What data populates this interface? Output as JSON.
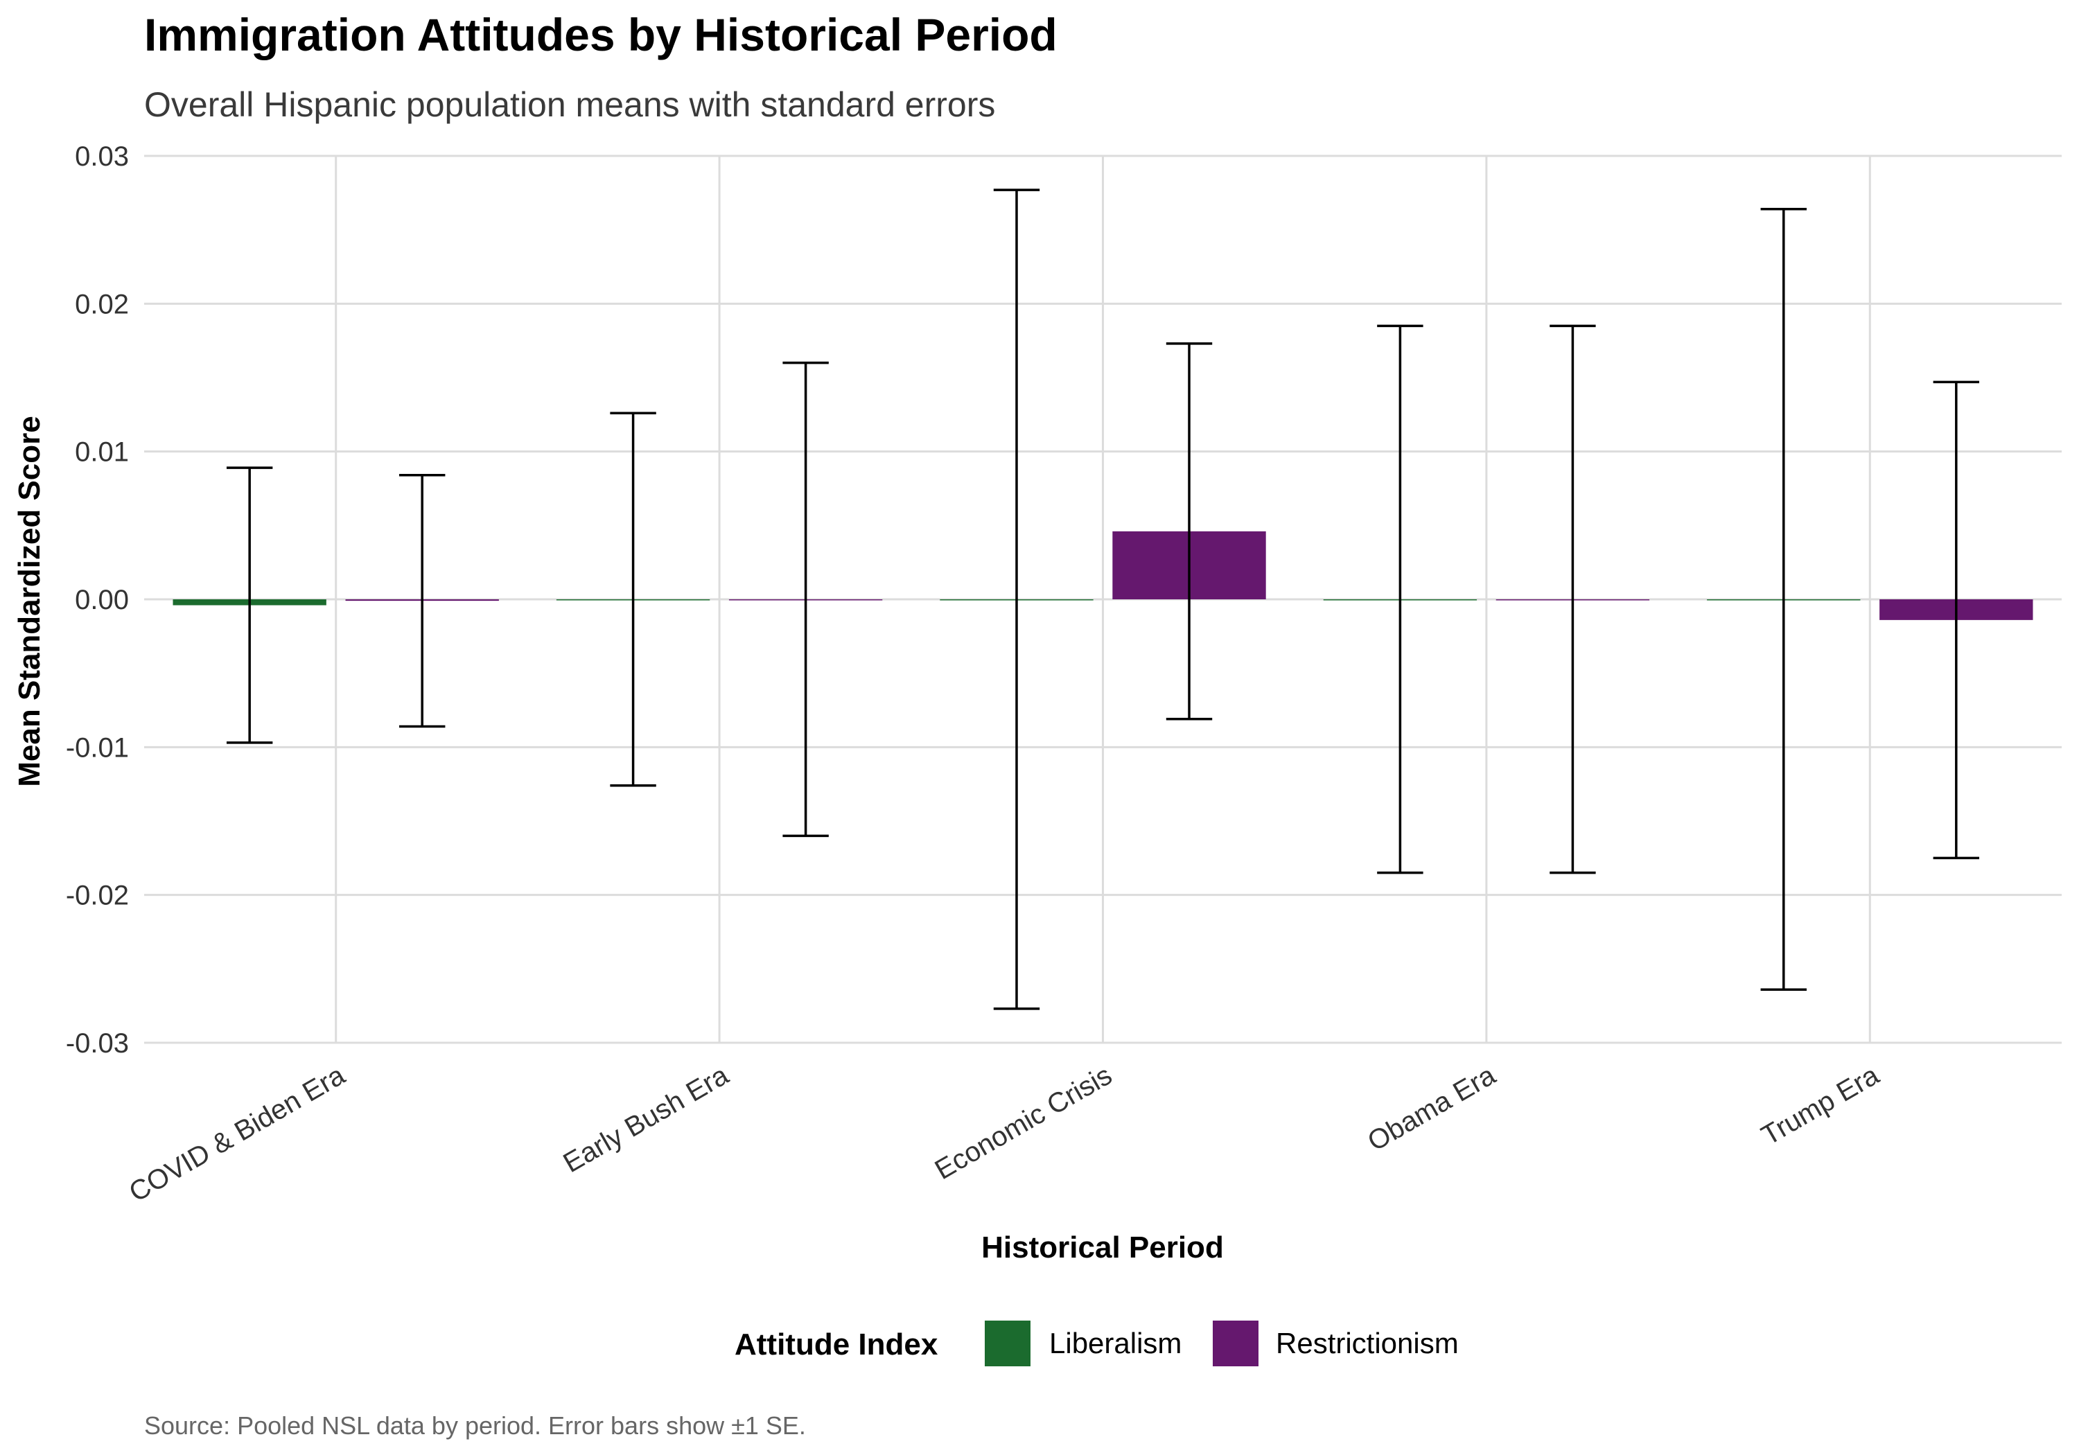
{
  "chart_data": {
    "type": "bar",
    "title": "Immigration Attitudes by Historical Period",
    "subtitle": "Overall Hispanic population means with standard errors",
    "xlabel": "Historical Period",
    "ylabel": "Mean Standardized Score",
    "caption": "Source: Pooled NSL data by period. Error bars show ±1 SE.",
    "ylim": [
      -0.03,
      0.03
    ],
    "yticks": [
      0.03,
      0.02,
      0.01,
      0.0,
      -0.01,
      -0.02,
      -0.03
    ],
    "ytick_labels": [
      "0.03",
      "0.02",
      "0.01",
      "0.00",
      "-0.01",
      "-0.02",
      "-0.03"
    ],
    "categories": [
      "COVID & Biden Era",
      "Early Bush Era",
      "Economic Crisis",
      "Obama Era",
      "Trump Era"
    ],
    "grid": true,
    "legend": {
      "title": "Attitude Index",
      "position": "bottom"
    },
    "series": [
      {
        "name": "Liberalism",
        "color": "#1b6b2e",
        "values": [
          -0.0004,
          0.0,
          0.0,
          0.0,
          0.0
        ],
        "se": [
          0.0093,
          0.0126,
          0.0277,
          0.0185,
          0.0264
        ]
      },
      {
        "name": "Restrictionism",
        "color": "#65186e",
        "values": [
          -0.0001,
          0.0,
          0.0046,
          0.0,
          -0.0014
        ],
        "se": [
          0.0085,
          0.016,
          0.0127,
          0.0185,
          0.0161
        ]
      }
    ]
  }
}
